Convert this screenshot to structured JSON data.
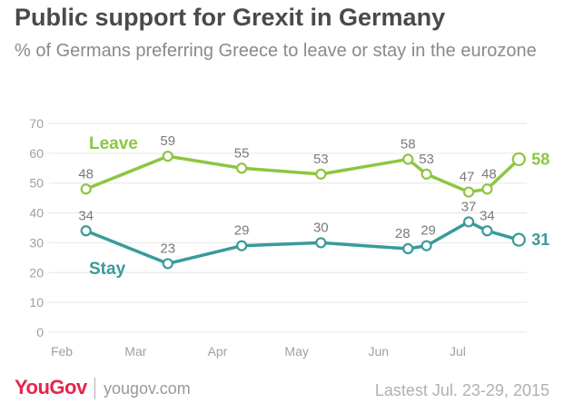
{
  "title": "Public support for Grexit in Germany",
  "subtitle": "% of Germans preferring Greece to leave or stay in the eurozone",
  "colors": {
    "leave": "#8dc63f",
    "stay": "#3a9a9a",
    "grid": "#e6e6e6",
    "brand": "#e6254a"
  },
  "footer": {
    "brand": "YouGov",
    "site": "yougov.com",
    "latest": "Lastest Jul. 23-29, 2015"
  },
  "chart_data": {
    "type": "line",
    "title": "Public support for Grexit in Germany",
    "subtitle": "% of Germans preferring Greece to leave or stay in the eurozone",
    "xlabel": "",
    "ylabel": "",
    "ylim": [
      0,
      70
    ],
    "yticks": [
      "0",
      "10",
      "20",
      "30",
      "40",
      "50",
      "60",
      "70"
    ],
    "xticks": [
      "Feb",
      "Mar",
      "Apr",
      "May",
      "Jun",
      "Jul"
    ],
    "grid": true,
    "series": [
      {
        "name": "Leave",
        "color": "#8dc63f",
        "end_label": "58",
        "points": [
          {
            "x": "2015-02-15",
            "y": 48,
            "label": "48"
          },
          {
            "x": "2015-03-18",
            "y": 59,
            "label": "59"
          },
          {
            "x": "2015-04-15",
            "y": 55,
            "label": "55"
          },
          {
            "x": "2015-05-15",
            "y": 53,
            "label": "53"
          },
          {
            "x": "2015-06-17",
            "y": 58,
            "label": "58"
          },
          {
            "x": "2015-06-24",
            "y": 53,
            "label": "53"
          },
          {
            "x": "2015-07-10",
            "y": 47,
            "label": "47"
          },
          {
            "x": "2015-07-17",
            "y": 48,
            "label": "48"
          },
          {
            "x": "2015-07-29",
            "y": 58,
            "label": ""
          }
        ]
      },
      {
        "name": "Stay",
        "color": "#3a9a9a",
        "end_label": "31",
        "points": [
          {
            "x": "2015-02-15",
            "y": 34,
            "label": "34"
          },
          {
            "x": "2015-03-18",
            "y": 23,
            "label": "23"
          },
          {
            "x": "2015-04-15",
            "y": 29,
            "label": "29"
          },
          {
            "x": "2015-05-15",
            "y": 30,
            "label": "30"
          },
          {
            "x": "2015-06-17",
            "y": 28,
            "label": "28"
          },
          {
            "x": "2015-06-24",
            "y": 29,
            "label": "29"
          },
          {
            "x": "2015-07-10",
            "y": 37,
            "label": "37"
          },
          {
            "x": "2015-07-17",
            "y": 34,
            "label": "34"
          },
          {
            "x": "2015-07-29",
            "y": 31,
            "label": ""
          }
        ]
      }
    ]
  }
}
